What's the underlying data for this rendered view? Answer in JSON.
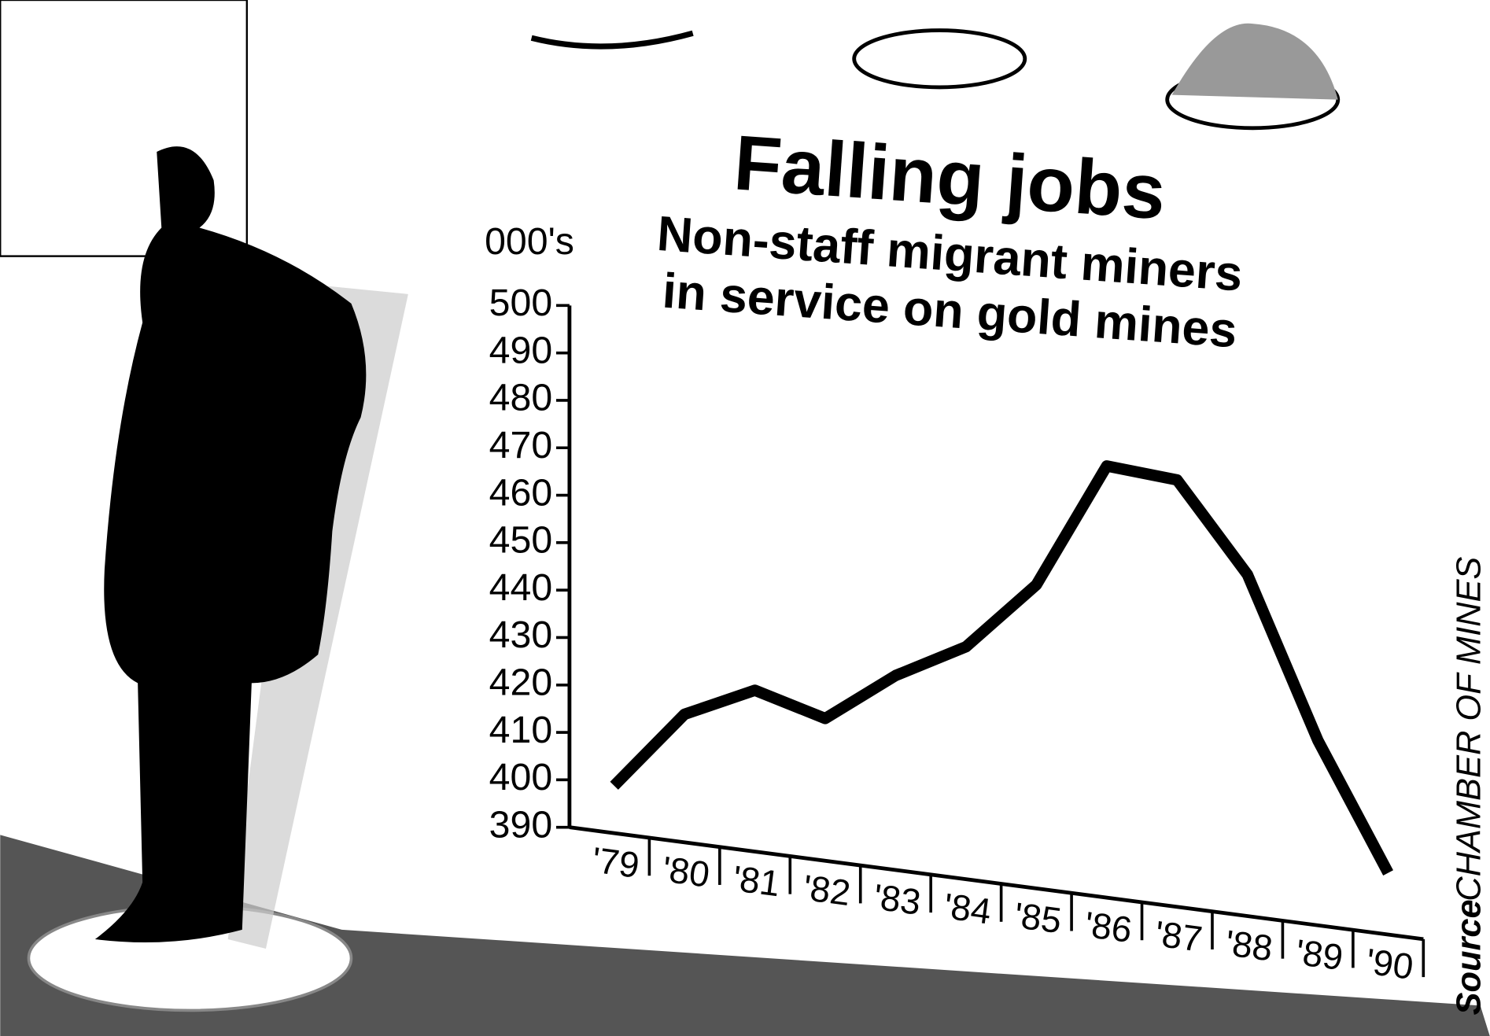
{
  "chart_data": {
    "type": "line",
    "title": "Falling jobs",
    "subtitle": [
      "Non-staff migrant miners",
      "in service on gold mines"
    ],
    "y_label": "000's",
    "source_label": "Source",
    "source": "CHAMBER OF MINES",
    "categories": [
      "'79",
      "'80",
      "'81",
      "'82",
      "'83",
      "'84",
      "'85",
      "'86",
      "'87",
      "'88",
      "'89",
      "'90"
    ],
    "values": [
      400,
      417,
      424,
      420,
      431,
      439,
      454,
      481,
      480,
      462,
      429,
      403
    ],
    "color": "#000000",
    "ylim": [
      390,
      500
    ],
    "yticks": [
      390,
      400,
      410,
      420,
      430,
      440,
      450,
      460,
      470,
      480,
      490,
      500
    ]
  }
}
